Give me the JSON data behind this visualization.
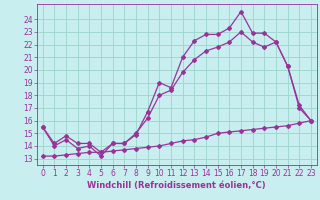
{
  "xlabel": "Windchill (Refroidissement éolien,°C)",
  "bg_color": "#c8eef0",
  "grid_color": "#a0d8d0",
  "line_color": "#993399",
  "xlim": [
    -0.5,
    23.5
  ],
  "ylim": [
    12.5,
    25.2
  ],
  "xticks": [
    0,
    1,
    2,
    3,
    4,
    5,
    6,
    7,
    8,
    9,
    10,
    11,
    12,
    13,
    14,
    15,
    16,
    17,
    18,
    19,
    20,
    21,
    22,
    23
  ],
  "yticks": [
    13,
    14,
    15,
    16,
    17,
    18,
    19,
    20,
    21,
    22,
    23,
    24
  ],
  "series1_x": [
    0,
    1,
    2,
    3,
    4,
    5,
    6,
    7,
    8,
    9,
    10,
    11,
    12,
    13,
    14,
    15,
    16,
    17,
    18,
    19,
    20,
    21,
    22,
    23
  ],
  "series1_y": [
    15.5,
    14.0,
    14.5,
    13.8,
    14.0,
    13.2,
    14.2,
    14.2,
    14.9,
    16.7,
    19.0,
    18.6,
    21.0,
    22.3,
    22.8,
    22.8,
    23.3,
    24.6,
    22.9,
    22.9,
    22.2,
    20.3,
    17.0,
    16.0
  ],
  "series2_x": [
    0,
    1,
    2,
    3,
    4,
    5,
    6,
    7,
    8,
    9,
    10,
    11,
    12,
    13,
    14,
    15,
    16,
    17,
    18,
    19,
    20,
    21,
    22,
    23
  ],
  "series2_y": [
    15.5,
    14.2,
    14.8,
    14.2,
    14.2,
    13.5,
    14.2,
    14.2,
    15.0,
    16.2,
    18.0,
    18.4,
    19.8,
    20.8,
    21.5,
    21.8,
    22.2,
    23.0,
    22.2,
    21.8,
    22.2,
    20.3,
    17.2,
    16.0
  ],
  "series3_x": [
    0,
    1,
    2,
    3,
    4,
    5,
    6,
    7,
    8,
    9,
    10,
    11,
    12,
    13,
    14,
    15,
    16,
    17,
    18,
    19,
    20,
    21,
    22,
    23
  ],
  "series3_y": [
    13.2,
    13.2,
    13.3,
    13.4,
    13.5,
    13.5,
    13.6,
    13.7,
    13.8,
    13.9,
    14.0,
    14.2,
    14.4,
    14.5,
    14.7,
    15.0,
    15.1,
    15.2,
    15.3,
    15.4,
    15.5,
    15.6,
    15.8,
    16.0
  ],
  "tick_fontsize": 5.5,
  "xlabel_fontsize": 6.0,
  "marker_size": 2.0,
  "line_width": 0.9
}
